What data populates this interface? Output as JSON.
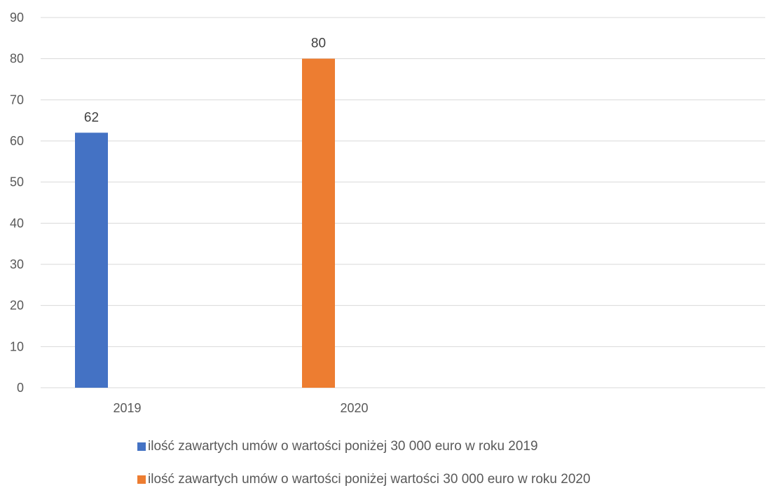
{
  "chart_data": {
    "type": "bar",
    "categories": [
      "2019",
      "2020"
    ],
    "series": [
      {
        "name": "ilość zawartych umów o wartości poniżej 30 000 euro w roku 2019",
        "values": [
          62,
          null
        ],
        "color": "#4472C4"
      },
      {
        "name": "ilość zawartych umów o wartości poniżej wartości 30 000 euro w roku 2020",
        "values": [
          null,
          80
        ],
        "color": "#ED7D31"
      }
    ],
    "ylim": [
      0,
      90
    ],
    "yticks": [
      "0",
      "10",
      "20",
      "30",
      "40",
      "50",
      "60",
      "70",
      "80",
      "90"
    ],
    "data_labels": [
      "62",
      "80"
    ],
    "grid": true,
    "legend": "bottom",
    "title": "",
    "xlabel": "",
    "ylabel": ""
  }
}
